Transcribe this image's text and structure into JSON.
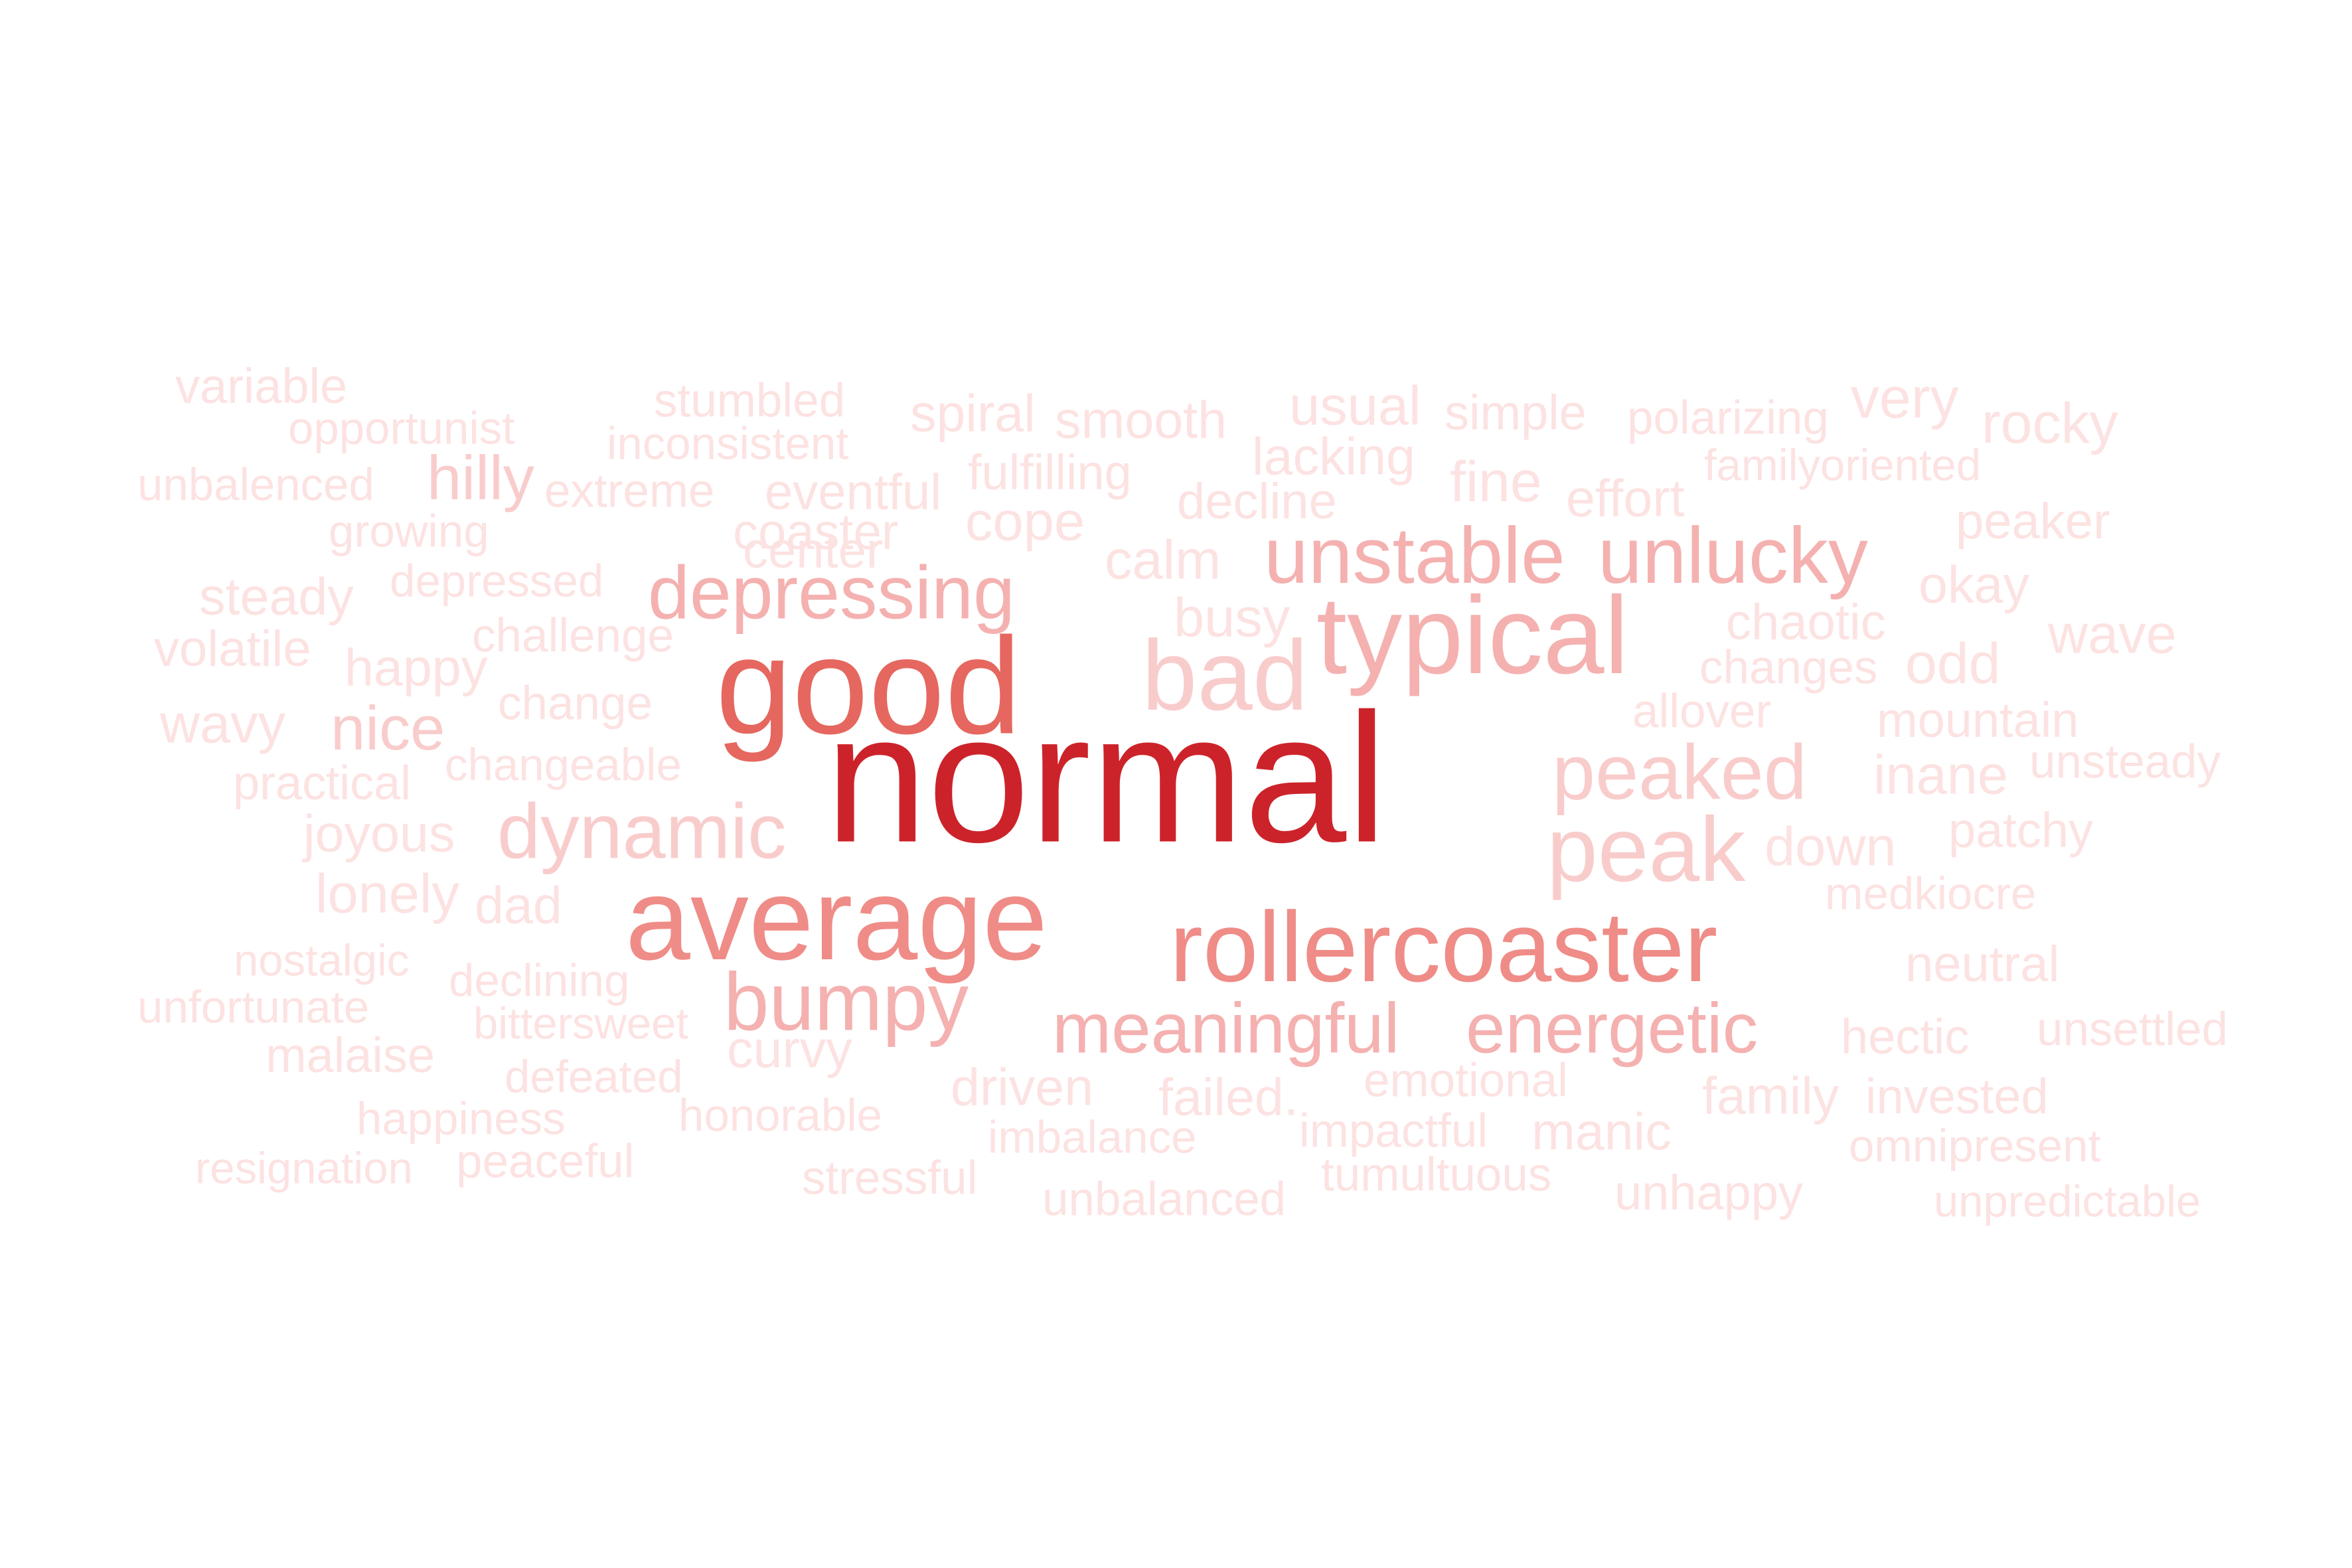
{
  "palette": {
    "lightest": "#fde2e2",
    "light": "#f9cccc",
    "mid": "#f4b1b0",
    "strong": "#ef8c87",
    "stronger": "#e5675f",
    "darkest": "#cc232a"
  },
  "words": [
    {
      "text": "variable",
      "tier": "lightest"
    },
    {
      "text": "opportunist",
      "tier": "lightest"
    },
    {
      "text": "unbalenced",
      "tier": "lightest"
    },
    {
      "text": "hilly",
      "tier": "light"
    },
    {
      "text": "growing",
      "tier": "lightest"
    },
    {
      "text": "steady",
      "tier": "lightest"
    },
    {
      "text": "depressed",
      "tier": "lightest"
    },
    {
      "text": "volatile",
      "tier": "lightest"
    },
    {
      "text": "happy",
      "tier": "lightest"
    },
    {
      "text": "challenge",
      "tier": "lightest"
    },
    {
      "text": "wavy",
      "tier": "lightest"
    },
    {
      "text": "nice",
      "tier": "light"
    },
    {
      "text": "change",
      "tier": "lightest"
    },
    {
      "text": "practical",
      "tier": "lightest"
    },
    {
      "text": "changeable",
      "tier": "lightest"
    },
    {
      "text": "joyous",
      "tier": "lightest"
    },
    {
      "text": "lonely",
      "tier": "lightest"
    },
    {
      "text": "dad",
      "tier": "lightest"
    },
    {
      "text": "nostalgic",
      "tier": "lightest"
    },
    {
      "text": "declining",
      "tier": "lightest"
    },
    {
      "text": "unfortunate",
      "tier": "lightest"
    },
    {
      "text": "bittersweet",
      "tier": "lightest"
    },
    {
      "text": "malaise",
      "tier": "lightest"
    },
    {
      "text": "defeated",
      "tier": "lightest"
    },
    {
      "text": "happiness",
      "tier": "lightest"
    },
    {
      "text": "resignation",
      "tier": "lightest"
    },
    {
      "text": "peaceful",
      "tier": "lightest"
    },
    {
      "text": "stumbled",
      "tier": "lightest"
    },
    {
      "text": "inconsistent",
      "tier": "lightest"
    },
    {
      "text": "extreme",
      "tier": "lightest"
    },
    {
      "text": "eventful",
      "tier": "lightest"
    },
    {
      "text": "coaster",
      "tier": "lightest"
    },
    {
      "text": "center",
      "tier": "lightest"
    },
    {
      "text": "depressing",
      "tier": "mid"
    },
    {
      "text": "good",
      "tier": "stronger"
    },
    {
      "text": "dynamic",
      "tier": "light"
    },
    {
      "text": "average",
      "tier": "strong"
    },
    {
      "text": "bumpy",
      "tier": "mid"
    },
    {
      "text": "curvy",
      "tier": "lightest"
    },
    {
      "text": "honorable",
      "tier": "lightest"
    },
    {
      "text": "stressful",
      "tier": "lightest"
    },
    {
      "text": "spiral",
      "tier": "lightest"
    },
    {
      "text": "smooth",
      "tier": "lightest"
    },
    {
      "text": "fulfilling",
      "tier": "lightest"
    },
    {
      "text": "cope",
      "tier": "lightest"
    },
    {
      "text": "calm",
      "tier": "lightest"
    },
    {
      "text": "busy",
      "tier": "lightest"
    },
    {
      "text": "bad",
      "tier": "light"
    },
    {
      "text": "normal",
      "tier": "darkest"
    },
    {
      "text": "driven",
      "tier": "lightest"
    },
    {
      "text": "imbalance",
      "tier": "lightest"
    },
    {
      "text": "failed.",
      "tier": "lightest"
    },
    {
      "text": "unbalanced",
      "tier": "lightest"
    },
    {
      "text": "usual",
      "tier": "lightest"
    },
    {
      "text": "lacking",
      "tier": "lightest"
    },
    {
      "text": "decline",
      "tier": "lightest"
    },
    {
      "text": "simple",
      "tier": "lightest"
    },
    {
      "text": "fine",
      "tier": "lightest"
    },
    {
      "text": "effort",
      "tier": "lightest"
    },
    {
      "text": "unstable",
      "tier": "mid"
    },
    {
      "text": "unlucky",
      "tier": "mid"
    },
    {
      "text": "typical",
      "tier": "mid"
    },
    {
      "text": "rollercoaster",
      "tier": "strong"
    },
    {
      "text": "meaningful",
      "tier": "mid"
    },
    {
      "text": "energetic",
      "tier": "mid"
    },
    {
      "text": "emotional",
      "tier": "lightest"
    },
    {
      "text": "impactful",
      "tier": "lightest"
    },
    {
      "text": "manic",
      "tier": "lightest"
    },
    {
      "text": "tumultuous",
      "tier": "lightest"
    },
    {
      "text": "polarizing",
      "tier": "lightest"
    },
    {
      "text": "very",
      "tier": "lightest"
    },
    {
      "text": "rocky",
      "tier": "lightest"
    },
    {
      "text": "familyoriented",
      "tier": "lightest"
    },
    {
      "text": "peaker",
      "tier": "lightest"
    },
    {
      "text": "okay",
      "tier": "lightest"
    },
    {
      "text": "chaotic",
      "tier": "lightest"
    },
    {
      "text": "changes",
      "tier": "lightest"
    },
    {
      "text": "odd",
      "tier": "lightest"
    },
    {
      "text": "wave",
      "tier": "lightest"
    },
    {
      "text": "allover",
      "tier": "lightest"
    },
    {
      "text": "mountain",
      "tier": "lightest"
    },
    {
      "text": "peaked",
      "tier": "light"
    },
    {
      "text": "inane",
      "tier": "lightest"
    },
    {
      "text": "unsteady",
      "tier": "lightest"
    },
    {
      "text": "peak",
      "tier": "light"
    },
    {
      "text": "down",
      "tier": "lightest"
    },
    {
      "text": "patchy",
      "tier": "lightest"
    },
    {
      "text": "medkiocre",
      "tier": "lightest"
    },
    {
      "text": "neutral",
      "tier": "lightest"
    },
    {
      "text": "hectic",
      "tier": "lightest"
    },
    {
      "text": "unsettled",
      "tier": "lightest"
    },
    {
      "text": "family",
      "tier": "lightest"
    },
    {
      "text": "invested",
      "tier": "lightest"
    },
    {
      "text": "omnipresent",
      "tier": "lightest"
    },
    {
      "text": "unhappy",
      "tier": "lightest"
    },
    {
      "text": "unpredictable",
      "tier": "lightest"
    }
  ]
}
